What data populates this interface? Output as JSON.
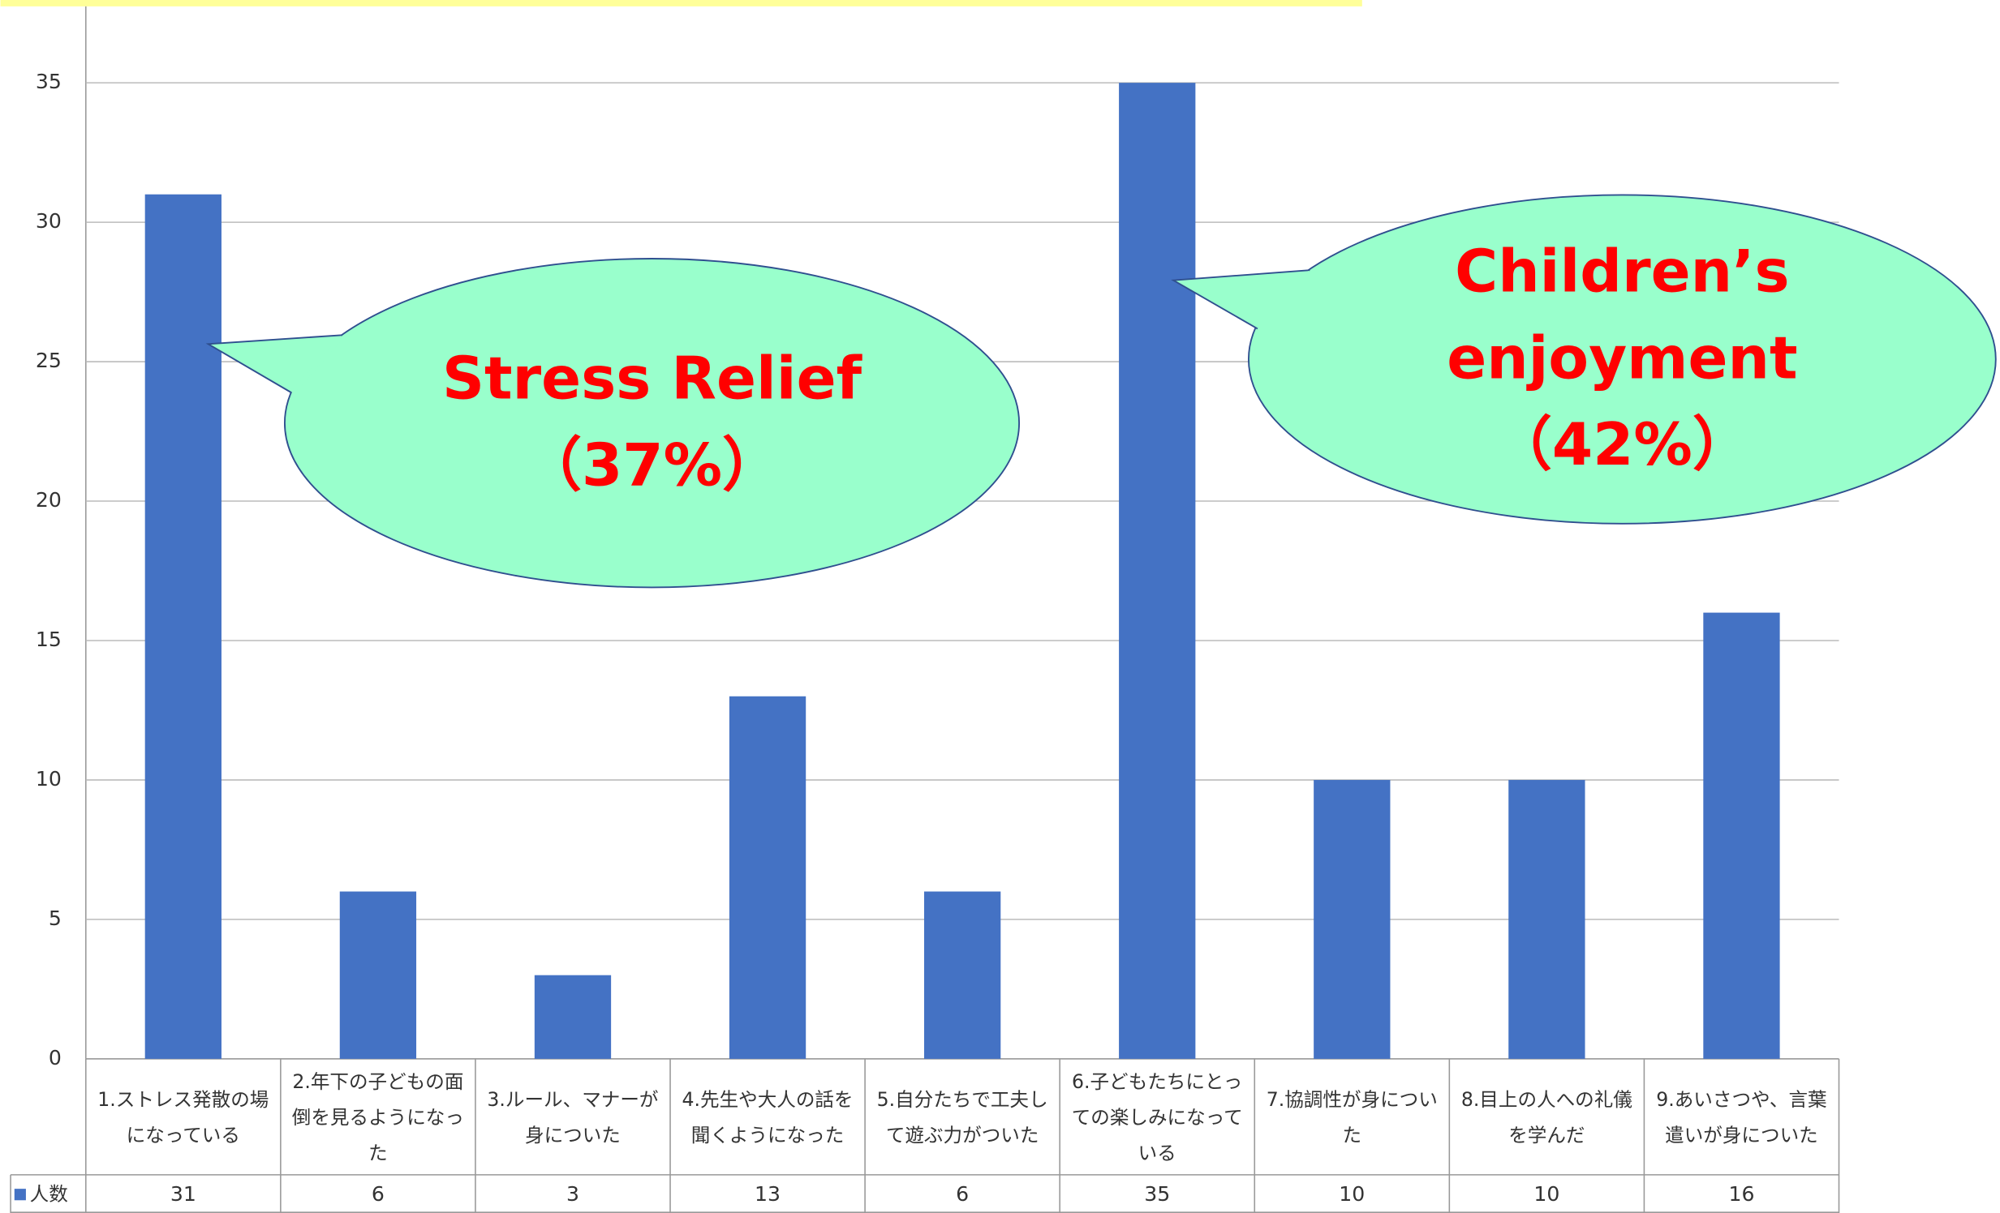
{
  "chart_data": {
    "type": "bar",
    "categories": [
      "1.ストレス発散の場になっている",
      "2.年下の子どもの面倒を見るようになった",
      "3.ルール、マナーが身についた",
      "4.先生や大人の話を聞くようになった",
      "5.自分たちで工夫して遊ぶ力がついた",
      "6.子どもたちにとっての楽しみになっている",
      "7.協調性が身についた",
      "8.目上の人への礼儀を学んだ",
      "9.あいさつや、言葉遣いが身についた"
    ],
    "series": [
      {
        "name": "人数",
        "color": "#4472c4",
        "values": [
          31,
          6,
          3,
          13,
          6,
          35,
          10,
          10,
          16
        ]
      }
    ],
    "ylim": [
      0,
      35
    ],
    "yticks": [
      0,
      5,
      10,
      15,
      20,
      25,
      30,
      35
    ],
    "grid": true,
    "annotations": [
      {
        "lines": [
          "Stress Relief",
          "（37%）"
        ],
        "color": "#ff0000",
        "fill": "#99ffcc"
      },
      {
        "lines": [
          "Children’s",
          "enjoyment",
          "（42%）"
        ],
        "color": "#ff0000",
        "fill": "#99ffcc"
      }
    ]
  }
}
